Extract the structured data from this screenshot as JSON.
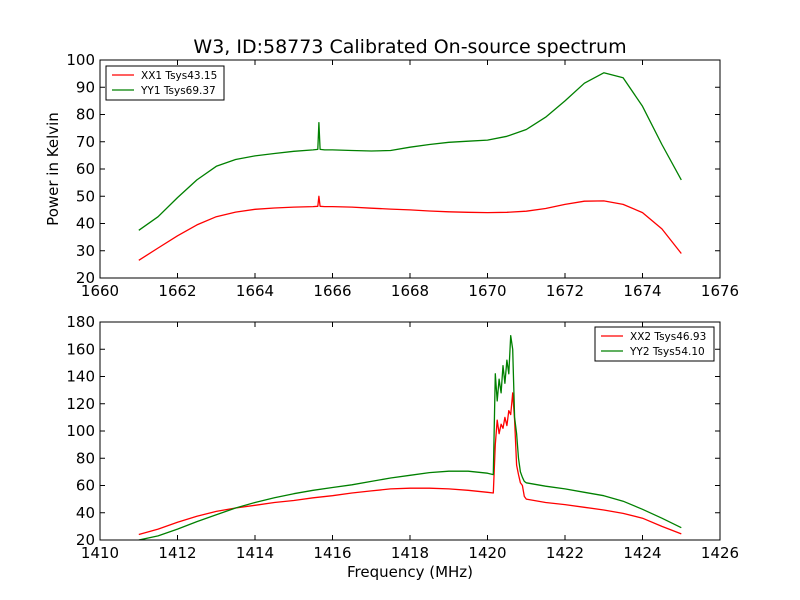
{
  "title": "W3, ID:58773 Calibrated On-source spectrum",
  "chart_data": [
    {
      "type": "line",
      "title": "W3, ID:58773 Calibrated On-source spectrum",
      "xlabel": "",
      "ylabel": "Power in Kelvin",
      "xlim": [
        1660,
        1676
      ],
      "ylim": [
        20,
        100
      ],
      "xticks": [
        "1660",
        "1662",
        "1664",
        "1666",
        "1668",
        "1670",
        "1672",
        "1674",
        "1676"
      ],
      "yticks": [
        "20",
        "30",
        "40",
        "50",
        "60",
        "70",
        "80",
        "90",
        "100"
      ],
      "legend_position": "top-left",
      "series": [
        {
          "name": "XX1 Tsys43.15",
          "color": "#ff0000",
          "x": [
            1661.0,
            1661.5,
            1662.0,
            1662.5,
            1663.0,
            1663.5,
            1664.0,
            1664.5,
            1665.0,
            1665.5,
            1665.62,
            1665.65,
            1665.68,
            1665.8,
            1666.0,
            1666.5,
            1667.0,
            1667.5,
            1668.0,
            1668.5,
            1669.0,
            1669.5,
            1670.0,
            1670.5,
            1671.0,
            1671.5,
            1672.0,
            1672.5,
            1673.0,
            1673.5,
            1674.0,
            1674.5,
            1675.0
          ],
          "y": [
            26.5,
            31.0,
            35.5,
            39.5,
            42.5,
            44.2,
            45.2,
            45.7,
            46.0,
            46.2,
            46.3,
            50.0,
            46.3,
            46.2,
            46.2,
            46.0,
            45.6,
            45.3,
            45.0,
            44.6,
            44.3,
            44.1,
            44.0,
            44.1,
            44.5,
            45.5,
            47.0,
            48.2,
            48.3,
            47.0,
            44.0,
            38.0,
            29.0
          ]
        },
        {
          "name": "YY1 Tsys69.37",
          "color": "#008000",
          "x": [
            1661.0,
            1661.5,
            1662.0,
            1662.5,
            1663.0,
            1663.5,
            1664.0,
            1664.5,
            1665.0,
            1665.5,
            1665.62,
            1665.65,
            1665.68,
            1665.8,
            1666.0,
            1666.5,
            1667.0,
            1667.5,
            1668.0,
            1668.5,
            1669.0,
            1669.5,
            1670.0,
            1670.5,
            1671.0,
            1671.5,
            1672.0,
            1672.5,
            1673.0,
            1673.5,
            1674.0,
            1674.5,
            1675.0
          ],
          "y": [
            37.5,
            42.5,
            49.5,
            56.0,
            61.0,
            63.5,
            64.8,
            65.7,
            66.5,
            67.0,
            67.2,
            77.0,
            67.2,
            67.0,
            67.0,
            66.8,
            66.6,
            66.8,
            68.0,
            69.0,
            69.8,
            70.2,
            70.6,
            72.0,
            74.5,
            79.0,
            85.0,
            91.5,
            95.3,
            93.5,
            83.0,
            69.0,
            56.0
          ]
        }
      ]
    },
    {
      "type": "line",
      "title": "",
      "xlabel": "Frequency (MHz)",
      "ylabel": "",
      "xlim": [
        1410,
        1426
      ],
      "ylim": [
        20,
        180
      ],
      "xticks": [
        "1410",
        "1412",
        "1414",
        "1416",
        "1418",
        "1420",
        "1422",
        "1424",
        "1426"
      ],
      "yticks": [
        "20",
        "40",
        "60",
        "80",
        "100",
        "120",
        "140",
        "160",
        "180"
      ],
      "legend_position": "top-right",
      "series": [
        {
          "name": "XX2 Tsys46.93",
          "color": "#ff0000",
          "x": [
            1411.0,
            1411.5,
            1412.0,
            1412.5,
            1413.0,
            1413.5,
            1414.0,
            1414.5,
            1415.0,
            1415.5,
            1416.0,
            1416.5,
            1417.0,
            1417.5,
            1418.0,
            1418.5,
            1419.0,
            1419.5,
            1420.0,
            1420.15,
            1420.2,
            1420.25,
            1420.3,
            1420.35,
            1420.4,
            1420.45,
            1420.5,
            1420.55,
            1420.6,
            1420.65,
            1420.7,
            1420.75,
            1420.8,
            1420.85,
            1420.9,
            1420.95,
            1421.0,
            1421.5,
            1422.0,
            1422.5,
            1423.0,
            1423.5,
            1424.0,
            1424.5,
            1425.0
          ],
          "y": [
            24.0,
            28.0,
            33.0,
            37.5,
            41.0,
            43.5,
            45.5,
            47.5,
            49.0,
            51.0,
            52.5,
            54.5,
            56.0,
            57.5,
            58.0,
            58.0,
            57.5,
            56.5,
            55.0,
            54.5,
            90.0,
            108.0,
            98.0,
            105.0,
            102.0,
            110.0,
            104.0,
            115.0,
            112.0,
            128.0,
            108.0,
            75.0,
            68.0,
            62.0,
            60.0,
            52.0,
            50.0,
            47.5,
            46.0,
            44.0,
            42.0,
            39.5,
            36.0,
            30.0,
            24.5
          ]
        },
        {
          "name": "YY2 Tsys54.10",
          "color": "#008000",
          "x": [
            1411.0,
            1411.5,
            1412.0,
            1412.5,
            1413.0,
            1413.5,
            1414.0,
            1414.5,
            1415.0,
            1415.5,
            1416.0,
            1416.5,
            1417.0,
            1417.5,
            1418.0,
            1418.5,
            1419.0,
            1419.5,
            1420.0,
            1420.15,
            1420.2,
            1420.25,
            1420.3,
            1420.35,
            1420.4,
            1420.45,
            1420.5,
            1420.55,
            1420.6,
            1420.65,
            1420.7,
            1420.75,
            1420.8,
            1420.85,
            1420.9,
            1420.95,
            1421.0,
            1421.5,
            1422.0,
            1422.5,
            1423.0,
            1423.5,
            1424.0,
            1424.5,
            1425.0
          ],
          "y": [
            20.0,
            23.0,
            28.0,
            33.5,
            38.5,
            43.5,
            47.5,
            51.0,
            54.0,
            56.5,
            58.5,
            60.5,
            63.0,
            65.5,
            67.5,
            69.5,
            70.5,
            70.5,
            69.0,
            68.0,
            142.0,
            122.0,
            138.0,
            128.0,
            148.0,
            135.0,
            152.0,
            142.0,
            170.0,
            160.0,
            110.0,
            98.0,
            80.0,
            70.0,
            66.0,
            63.0,
            62.0,
            59.5,
            57.5,
            55.0,
            52.5,
            48.5,
            42.5,
            36.0,
            29.0
          ]
        }
      ]
    }
  ]
}
